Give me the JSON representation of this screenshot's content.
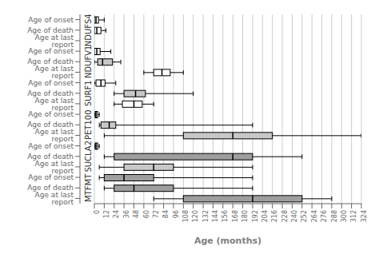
{
  "chart_data": {
    "type": "box",
    "orientation": "horizontal",
    "xlabel": "Age (months)",
    "xlim": [
      0,
      324
    ],
    "xticks": [
      0,
      12,
      24,
      36,
      48,
      60,
      72,
      84,
      96,
      108,
      120,
      132,
      144,
      156,
      168,
      180,
      192,
      204,
      216,
      228,
      240,
      252,
      264,
      276,
      288,
      300,
      312,
      324
    ],
    "grid": true,
    "groups": [
      {
        "name": "NDUFS4",
        "categories": [
          "Age of onset",
          "Age of death",
          "Age at last report"
        ],
        "whislo": [
          0,
          0,
          null
        ],
        "q1": [
          0,
          0,
          null
        ],
        "med": [
          2,
          3,
          null
        ],
        "q3": [
          5,
          8,
          null
        ],
        "whishi": [
          12,
          14,
          null
        ],
        "colors": [
          "#ffffff",
          "#ffffff",
          null
        ]
      },
      {
        "name": "NDUFV1",
        "categories": [
          "Age of onset",
          "Age of death",
          "Age at last report"
        ],
        "whislo": [
          0,
          0,
          60
        ],
        "q1": [
          0,
          4,
          72
        ],
        "med": [
          3,
          10,
          82
        ],
        "q3": [
          7,
          22,
          92
        ],
        "whishi": [
          20,
          32,
          108
        ],
        "colors": [
          "#ffffff",
          "#c8c8c8",
          "#ffffff"
        ]
      },
      {
        "name": "SURF1",
        "categories": [
          "Age of onset",
          "Age of death",
          "Age at last report"
        ],
        "whislo": [
          0,
          24,
          24
        ],
        "q1": [
          2,
          36,
          34
        ],
        "med": [
          8,
          50,
          48
        ],
        "q3": [
          13,
          62,
          58
        ],
        "whishi": [
          26,
          120,
          72
        ],
        "colors": [
          "#ffffff",
          "#c8c8c8",
          "#ffffff"
        ]
      },
      {
        "name": "PET100",
        "categories": [
          "Age of onset",
          "Age of death",
          "Age at last report"
        ],
        "whislo": [
          0,
          6,
          12
        ],
        "q1": [
          1,
          8,
          108
        ],
        "med": [
          2,
          18,
          168
        ],
        "q3": [
          4,
          26,
          216
        ],
        "whishi": [
          6,
          192,
          324
        ],
        "colors": [
          "#ffffff",
          "#c8c8c8",
          "#c8c8c8"
        ]
      },
      {
        "name": "SUCLA2",
        "categories": [
          "Age of onset",
          "Age of death",
          "Age at last report"
        ],
        "whislo": [
          0,
          12,
          6
        ],
        "q1": [
          1,
          24,
          36
        ],
        "med": [
          2,
          168,
          72
        ],
        "q3": [
          4,
          192,
          96
        ],
        "whishi": [
          6,
          252,
          192
        ],
        "colors": [
          "#ffffff",
          "#9e9e9e",
          "#c8c8c8"
        ]
      },
      {
        "name": "MTFMT",
        "categories": [
          "Age of onset",
          "Age of death",
          "Age at last report"
        ],
        "whislo": [
          6,
          12,
          72
        ],
        "q1": [
          12,
          24,
          108
        ],
        "med": [
          36,
          48,
          192
        ],
        "q3": [
          72,
          96,
          252
        ],
        "whishi": [
          192,
          192,
          288
        ],
        "colors": [
          "#9e9e9e",
          "#9e9e9e",
          "#9e9e9e"
        ]
      }
    ]
  }
}
